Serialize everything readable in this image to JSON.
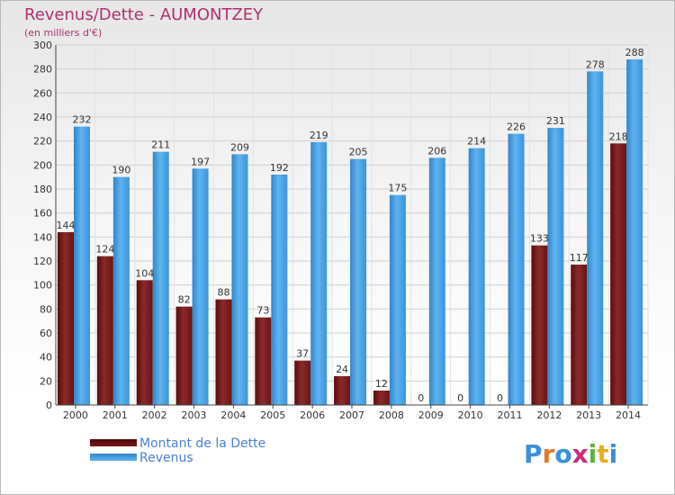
{
  "chart_data": {
    "type": "bar",
    "title": "Revenus/Dette - AUMONTZEY",
    "subtitle": "(en milliers d'€)",
    "categories": [
      "2000",
      "2001",
      "2002",
      "2003",
      "2004",
      "2005",
      "2006",
      "2007",
      "2008",
      "2009",
      "2010",
      "2011",
      "2012",
      "2013",
      "2014"
    ],
    "series": [
      {
        "name": "Montant de la Dette",
        "color": "#7a1a1a",
        "values": [
          144,
          124,
          104,
          82,
          88,
          73,
          37,
          24,
          12,
          0,
          0,
          0,
          133,
          117,
          218
        ]
      },
      {
        "name": "Revenus",
        "color": "#4aa3e6",
        "values": [
          232,
          190,
          211,
          197,
          209,
          192,
          219,
          205,
          175,
          206,
          214,
          226,
          231,
          278,
          288
        ]
      }
    ],
    "ylim": [
      0,
      300
    ],
    "yticks": [
      0,
      20,
      40,
      60,
      80,
      100,
      120,
      140,
      160,
      180,
      200,
      220,
      240,
      260,
      280,
      300
    ],
    "grid": true,
    "legend_position": "bottom-left"
  },
  "logo": {
    "letters": [
      "P",
      "r",
      "o",
      "x",
      "i",
      "t",
      "i"
    ],
    "colors": [
      "#3a8fd8",
      "#e07a2a",
      "#3a8fd8",
      "#d02a7a",
      "#60b040",
      "#e0b020",
      "#3a8fd8"
    ]
  }
}
